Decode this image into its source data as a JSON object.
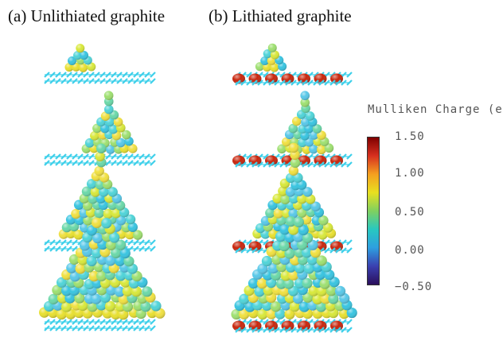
{
  "panels": [
    {
      "title": "(a) Unlithiated graphite"
    },
    {
      "title": "(b) Lithiated graphite"
    }
  ],
  "colorbar": {
    "title": "Mulliken Charge (e)",
    "ticks": [
      "1.50",
      "1.00",
      "0.50",
      "0.00",
      "−0.50"
    ],
    "colors": [
      "#7f0000",
      "#d7301f",
      "#f4a020",
      "#e8e020",
      "#7fd060",
      "#28c8c0",
      "#2e9fe0",
      "#3a40b0",
      "#2b0f5c"
    ]
  },
  "rows": [
    {
      "cluster_atoms": 10
    },
    {
      "cluster_atoms": 30
    },
    {
      "cluster_atoms": 60
    },
    {
      "cluster_atoms": 110
    }
  ],
  "colors": {
    "graphene": "#3fd0ea",
    "lithium": "#c8260d",
    "cluster_palette": [
      "#4fd4d8",
      "#38c4e0",
      "#6ad8a8",
      "#9ee070",
      "#d8e83a",
      "#f0e040",
      "#58c8e8"
    ]
  }
}
